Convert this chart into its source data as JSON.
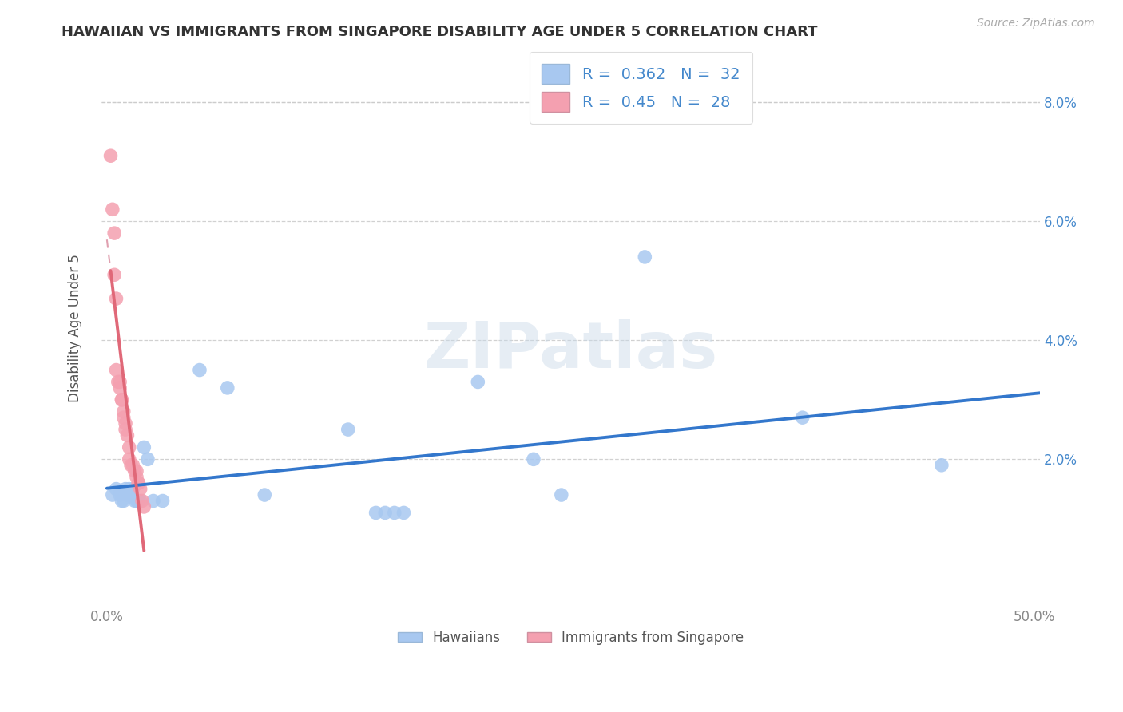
{
  "title": "HAWAIIAN VS IMMIGRANTS FROM SINGAPORE DISABILITY AGE UNDER 5 CORRELATION CHART",
  "source": "Source: ZipAtlas.com",
  "ylabel": "Disability Age Under 5",
  "xlim": [
    -0.003,
    0.503
  ],
  "ylim": [
    -0.004,
    0.088
  ],
  "yticks": [
    0.02,
    0.04,
    0.06,
    0.08
  ],
  "ytick_labels": [
    "2.0%",
    "4.0%",
    "6.0%",
    "8.0%"
  ],
  "xticks": [
    0.0,
    0.5
  ],
  "xtick_labels": [
    "0.0%",
    "50.0%"
  ],
  "legend_labels": [
    "Hawaiians",
    "Immigrants from Singapore"
  ],
  "hawaii_R": 0.362,
  "hawaii_N": 32,
  "singapore_R": 0.45,
  "singapore_N": 28,
  "hawaii_color": "#a8c8f0",
  "singapore_color": "#f4a0b0",
  "hawaii_line_color": "#3377cc",
  "singapore_line_color": "#e06878",
  "singapore_dash_color": "#e0a0b0",
  "background_color": "#ffffff",
  "grid_color": "#cccccc",
  "hawaii_x": [
    0.003,
    0.005,
    0.007,
    0.008,
    0.009,
    0.01,
    0.011,
    0.012,
    0.013,
    0.014,
    0.015,
    0.016,
    0.017,
    0.018,
    0.02,
    0.022,
    0.025,
    0.03,
    0.05,
    0.065,
    0.085,
    0.13,
    0.145,
    0.15,
    0.155,
    0.16,
    0.2,
    0.23,
    0.245,
    0.29,
    0.375,
    0.45
  ],
  "hawaii_y": [
    0.014,
    0.015,
    0.014,
    0.013,
    0.013,
    0.015,
    0.014,
    0.015,
    0.014,
    0.015,
    0.013,
    0.013,
    0.013,
    0.013,
    0.022,
    0.02,
    0.013,
    0.013,
    0.035,
    0.032,
    0.014,
    0.025,
    0.011,
    0.011,
    0.011,
    0.011,
    0.033,
    0.02,
    0.014,
    0.054,
    0.027,
    0.019
  ],
  "singapore_x": [
    0.002,
    0.003,
    0.004,
    0.004,
    0.005,
    0.005,
    0.006,
    0.007,
    0.007,
    0.008,
    0.008,
    0.009,
    0.009,
    0.01,
    0.01,
    0.011,
    0.012,
    0.012,
    0.013,
    0.014,
    0.015,
    0.016,
    0.016,
    0.017,
    0.017,
    0.018,
    0.019,
    0.02
  ],
  "singapore_y": [
    0.071,
    0.062,
    0.058,
    0.051,
    0.047,
    0.035,
    0.033,
    0.033,
    0.032,
    0.03,
    0.03,
    0.028,
    0.027,
    0.026,
    0.025,
    0.024,
    0.022,
    0.02,
    0.019,
    0.019,
    0.018,
    0.018,
    0.017,
    0.016,
    0.016,
    0.015,
    0.013,
    0.012
  ],
  "watermark_text": "ZIPatlas"
}
